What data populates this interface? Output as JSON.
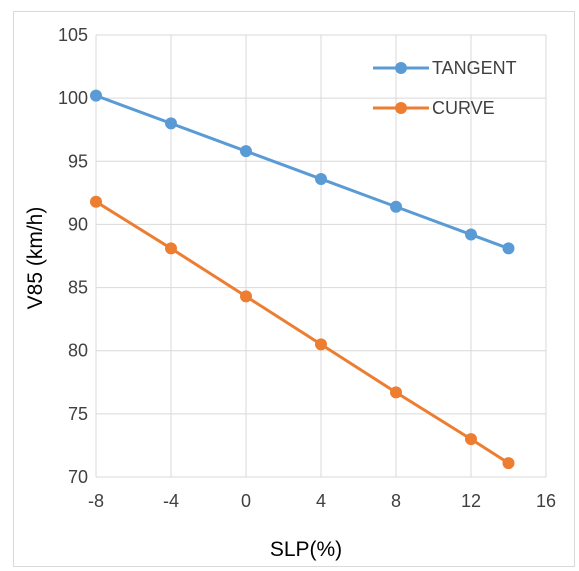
{
  "chart_data": {
    "type": "line",
    "title": "",
    "xlabel": "SLP(%)",
    "ylabel": "V85 (km/h)",
    "xlim": [
      -8,
      16
    ],
    "ylim": [
      70,
      105
    ],
    "xticks": [
      -8,
      -4,
      0,
      4,
      8,
      12,
      16
    ],
    "yticks": [
      70,
      75,
      80,
      85,
      90,
      95,
      100,
      105
    ],
    "xtick_labels": [
      "-8",
      "-4",
      "0",
      "4",
      "8",
      "12",
      "16"
    ],
    "ytick_labels": [
      "70",
      "75",
      "80",
      "85",
      "90",
      "95",
      "100",
      "105"
    ],
    "grid": true,
    "legend_position": "top-right",
    "x": [
      -8,
      -4,
      0,
      4,
      8,
      12,
      14
    ],
    "series": [
      {
        "name": "TANGENT",
        "color": "#5b9bd5",
        "values": [
          100.2,
          98.0,
          95.8,
          93.6,
          91.4,
          89.2,
          88.1
        ]
      },
      {
        "name": "CURVE",
        "color": "#ed7d31",
        "values": [
          91.8,
          88.1,
          84.3,
          80.5,
          76.7,
          73.0,
          71.1
        ]
      }
    ]
  }
}
